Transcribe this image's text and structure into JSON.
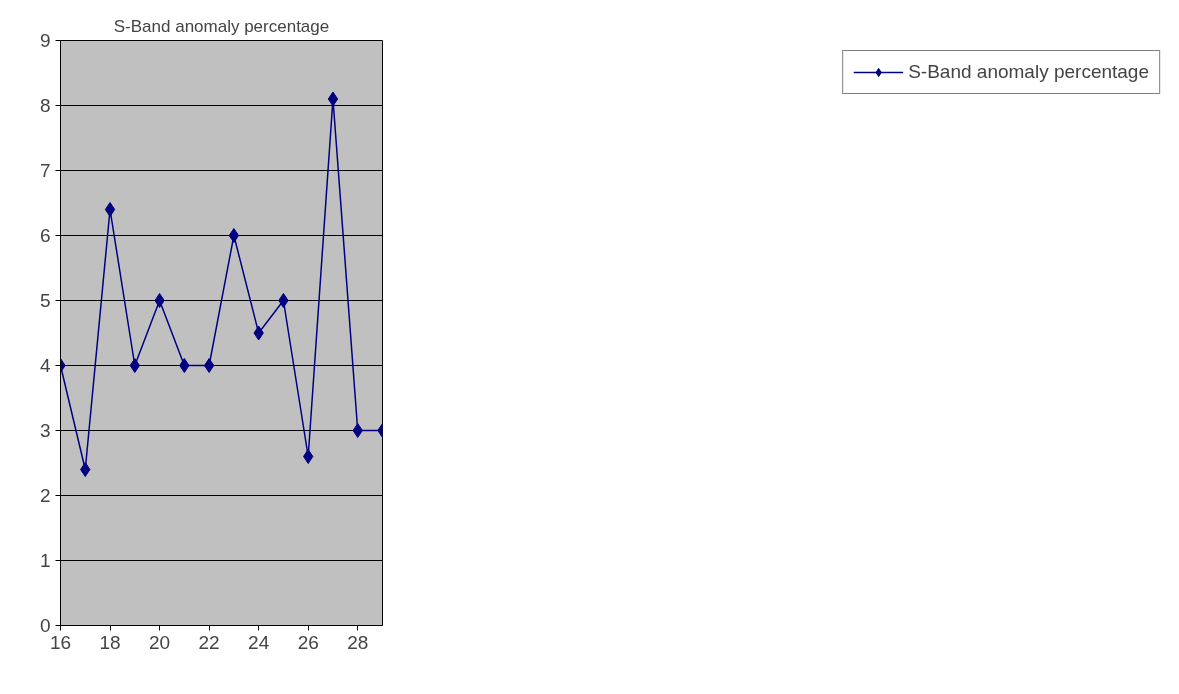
{
  "chart_data": {
    "type": "line",
    "title": "S-Band anomaly percentage",
    "x": [
      16,
      17,
      18,
      19,
      20,
      21,
      22,
      23,
      24,
      25,
      26,
      27,
      28,
      29
    ],
    "series": [
      {
        "name": "S-Band anomaly percentage",
        "color": "#000080",
        "values": [
          4,
          2.4,
          6.4,
          4,
          5,
          4,
          4,
          6,
          4.5,
          5,
          2.6,
          8.1,
          3,
          3
        ]
      }
    ],
    "xlim": [
      16,
      29
    ],
    "xticks": [
      16,
      18,
      20,
      22,
      24,
      26,
      28
    ],
    "ylim": [
      0,
      9
    ],
    "yticks": [
      0,
      1,
      2,
      3,
      4,
      5,
      6,
      7,
      8,
      9
    ],
    "grid": "y",
    "legend": "right",
    "marker": "diamond",
    "line_style": "solid"
  }
}
